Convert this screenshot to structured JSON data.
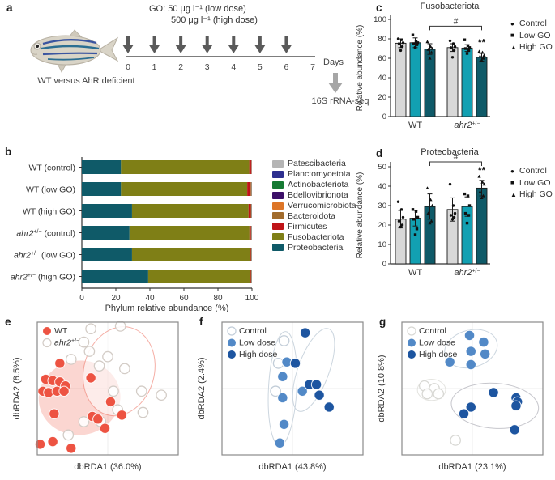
{
  "panel_a": {
    "label": "a",
    "dose_line1": "GO: 50 μg l⁻¹ (low dose)",
    "dose_line2": "500 μg l⁻¹ (high dose)",
    "fish_caption": "WT versus AhR deficient",
    "timeline_days": [
      "0",
      "1",
      "2",
      "3",
      "4",
      "5",
      "6",
      "7"
    ],
    "days_label": "Days",
    "seq_label": "16S rRNA-seq"
  },
  "panel_b": {
    "label": "b",
    "chart_data": {
      "type": "bar",
      "subtype": "horizontal_stacked",
      "xlabel": "Phylum relative abundance (%)",
      "xticks": [
        0,
        20,
        40,
        60,
        80,
        100
      ],
      "xlim": [
        0,
        100
      ],
      "categories": [
        {
          "pre": "WT (control)"
        },
        {
          "pre": "WT (low GO)"
        },
        {
          "pre": "WT (high GO)"
        },
        {
          "it": "ahr2",
          "sup": "+/−",
          "post": " (control)"
        },
        {
          "it": "ahr2",
          "sup": "+/−",
          "post": " (low GO)"
        },
        {
          "it": "ahr2",
          "sup": "+/−",
          "post": " (high GO)"
        }
      ],
      "series": [
        {
          "name": "Proteobacteria",
          "color": "#0f5a68",
          "values": [
            23,
            23,
            29.5,
            28,
            29.5,
            39
          ]
        },
        {
          "name": "Fusobacteriota",
          "color": "#7f7f16",
          "values": [
            75.4,
            74.2,
            68.5,
            70.5,
            69.1,
            59.7
          ]
        },
        {
          "name": "Firmicutes",
          "color": "#bf1418",
          "values": [
            1.1,
            2.0,
            1.3,
            0.9,
            0.7,
            0.6
          ]
        },
        {
          "name": "Bacteroidota",
          "color": "#a26c2d",
          "values": [
            0.2,
            0.3,
            0.3,
            0.2,
            0.3,
            0.3
          ]
        },
        {
          "name": "Verrucomicrobiota",
          "color": "#dd7527",
          "values": [
            0.1,
            0.2,
            0.1,
            0.1,
            0.1,
            0.1
          ]
        },
        {
          "name": "Bdellovibrionota",
          "color": "#3c0f68",
          "values": [
            0.1,
            0.1,
            0.1,
            0.1,
            0.1,
            0.1
          ]
        },
        {
          "name": "Actinobacteriota",
          "color": "#157a33",
          "values": [
            0.05,
            0.1,
            0.1,
            0.1,
            0.1,
            0.1
          ]
        },
        {
          "name": "Planctomycetota",
          "color": "#2d2f8f",
          "values": [
            0.03,
            0.05,
            0.05,
            0.05,
            0.05,
            0.05
          ]
        },
        {
          "name": "Patescibacteria",
          "color": "#b5b5b5",
          "values": [
            0.02,
            0.05,
            0.05,
            0.05,
            0.05,
            0.05
          ]
        }
      ],
      "legend_order": [
        "Patescibacteria",
        "Planctomycetota",
        "Actinobacteriota",
        "Bdellovibrionota",
        "Verrucomicrobiota",
        "Bacteroidota",
        "Firmicutes",
        "Fusobacteriota",
        "Proteobacteria"
      ]
    }
  },
  "panel_c": {
    "label": "c",
    "title": "Fusobacteriota",
    "legend": [
      {
        "marker": "●",
        "label": "Control"
      },
      {
        "marker": "■",
        "label": "Low GO"
      },
      {
        "marker": "▲",
        "label": "High GO"
      }
    ],
    "chart_data": {
      "type": "bar",
      "subtype": "grouped_vertical",
      "ylabel": "Relative abundance (%)",
      "ylim": [
        0,
        100
      ],
      "yticks": [
        0,
        20,
        40,
        60,
        80,
        100
      ],
      "groups": [
        {
          "pre": "WT"
        },
        {
          "it": "ahr2",
          "sup": "+/−"
        }
      ],
      "series": [
        "Control",
        "Low GO",
        "High GO"
      ],
      "bar_colors": [
        "#d8d8d8",
        "#12a0b2",
        "#0f5a68"
      ],
      "values": [
        [
          75.5,
          76,
          69.5
        ],
        [
          71,
          70.5,
          61
        ]
      ],
      "errors": [
        [
          4.5,
          5,
          5.5
        ],
        [
          4,
          3.5,
          4
        ]
      ],
      "points": [
        [
          [
            80,
            79,
            76,
            75,
            72,
            68
          ],
          [
            84,
            77,
            76,
            75,
            74,
            71
          ],
          [
            77,
            72,
            70,
            69,
            66,
            60
          ]
        ],
        [
          [
            78,
            75,
            72,
            71,
            68,
            61
          ],
          [
            79,
            73,
            71,
            70,
            68,
            65
          ],
          [
            67,
            66,
            63,
            62,
            60,
            58
          ]
        ]
      ],
      "significance": {
        "bracket_from": [
          0,
          2
        ],
        "bracket_to": [
          1,
          2
        ],
        "label": "#",
        "bracket_frac": 0.93,
        "stars": "**",
        "stars_value": 73
      }
    }
  },
  "panel_d": {
    "label": "d",
    "title": "Proteobacteria",
    "legend": [
      {
        "marker": "●",
        "label": "Control"
      },
      {
        "marker": "■",
        "label": "Low GO"
      },
      {
        "marker": "▲",
        "label": "High GO"
      }
    ],
    "chart_data": {
      "type": "bar",
      "subtype": "grouped_vertical",
      "ylabel": "Relative abundance (%)",
      "ylim": [
        0,
        50
      ],
      "yticks": [
        0,
        10,
        20,
        30,
        40,
        50
      ],
      "groups": [
        {
          "pre": "WT"
        },
        {
          "it": "ahr2",
          "sup": "+/−"
        }
      ],
      "series": [
        "Control",
        "Low GO",
        "High GO"
      ],
      "bar_colors": [
        "#d8d8d8",
        "#12a0b2",
        "#0f5a68"
      ],
      "values": [
        [
          23,
          23.5,
          29.5
        ],
        [
          28,
          29.5,
          39
        ]
      ],
      "errors": [
        [
          4.5,
          4,
          6.5
        ],
        [
          6,
          5,
          4
        ]
      ],
      "points": [
        [
          [
            32,
            28,
            24,
            22,
            20,
            19
          ],
          [
            28,
            27,
            24,
            23,
            18,
            15
          ],
          [
            39,
            33,
            30,
            26,
            22,
            21
          ]
        ],
        [
          [
            41,
            30,
            26,
            25,
            24,
            23
          ],
          [
            36,
            35,
            30,
            26,
            25,
            21
          ],
          [
            45,
            42,
            41,
            37,
            35,
            34
          ]
        ]
      ],
      "significance": {
        "bracket_from": [
          0,
          2
        ],
        "bracket_to": [
          1,
          2
        ],
        "label": "#",
        "bracket_frac": 1.05,
        "stars": "**",
        "stars_value": 46.5
      }
    }
  },
  "panel_e": {
    "label": "e",
    "chart_data": {
      "type": "scatter",
      "xlabel": "dbRDA1 (36.0%)",
      "ylabel": "dbRDA2 (8.5%)",
      "draw_order": [
        1,
        0
      ],
      "series": [
        {
          "label": {
            "pre": "WT"
          },
          "color": "#ed5342",
          "points": [
            [
              0.16,
              0.31
            ],
            [
              0.06,
              0.43
            ],
            [
              0.11,
              0.44
            ],
            [
              0.16,
              0.45
            ],
            [
              0.2,
              0.48
            ],
            [
              0.04,
              0.52
            ],
            [
              0.08,
              0.53
            ],
            [
              0.14,
              0.52
            ],
            [
              0.19,
              0.52
            ],
            [
              0.38,
              0.42
            ],
            [
              0.52,
              0.6
            ],
            [
              0.12,
              0.69
            ],
            [
              0.39,
              0.71
            ],
            [
              0.43,
              0.73
            ],
            [
              0.6,
              0.7
            ],
            [
              0.48,
              0.8
            ],
            [
              0.02,
              0.92
            ],
            [
              0.11,
              0.9
            ],
            [
              0.24,
              0.95
            ]
          ]
        },
        {
          "label": {
            "it": "ahr2",
            "sup": "+/−"
          },
          "open": true,
          "stroke": "#d3ccc6",
          "points": [
            [
              0.38,
              0.05
            ],
            [
              0.59,
              0.03
            ],
            [
              0.33,
              0.15
            ],
            [
              0.37,
              0.22
            ],
            [
              0.5,
              0.26
            ],
            [
              0.44,
              0.33
            ],
            [
              0.62,
              0.35
            ],
            [
              0.24,
              0.28
            ],
            [
              0.54,
              0.52
            ],
            [
              0.74,
              0.52
            ],
            [
              0.57,
              0.66
            ],
            [
              0.33,
              0.75
            ],
            [
              0.22,
              0.85
            ],
            [
              0.45,
              0.75
            ],
            [
              0.75,
              0.68
            ],
            [
              0.88,
              0.55
            ]
          ]
        }
      ],
      "ellipses": [
        {
          "cx": 0.3,
          "cy": 0.57,
          "rx": 0.29,
          "ry": 0.28,
          "rot": -8,
          "fill": "rgba(238,90,72,0.25)",
          "stroke": "none"
        },
        {
          "cx": 0.58,
          "cy": 0.37,
          "rx": 0.25,
          "ry": 0.34,
          "rot": 15,
          "fill": "rgba(255,255,255,0.55)",
          "stroke": "rgba(238,120,105,0.6)"
        }
      ]
    }
  },
  "panel_f": {
    "label": "f",
    "chart_data": {
      "type": "scatter",
      "xlabel": "dbRDA1 (43.8%)",
      "ylabel": "dbRDA2 (2.4%)",
      "draw_order": [
        0,
        1,
        2
      ],
      "series": [
        {
          "label": {
            "pre": "Control"
          },
          "open": true,
          "stroke": "#c2cdd8",
          "points": [
            [
              0.44,
              0.14
            ],
            [
              0.4,
              0.31
            ],
            [
              0.38,
              0.52
            ]
          ]
        },
        {
          "label": {
            "pre": "Low dose"
          },
          "color": "#5289c7",
          "points": [
            [
              0.46,
              0.3
            ],
            [
              0.43,
              0.41
            ],
            [
              0.43,
              0.57
            ],
            [
              0.44,
              0.77
            ],
            [
              0.41,
              0.91
            ],
            [
              0.57,
              0.52
            ]
          ]
        },
        {
          "label": {
            "pre": "High dose"
          },
          "color": "#1d55a0",
          "points": [
            [
              0.59,
              0.08
            ],
            [
              0.52,
              0.31
            ],
            [
              0.62,
              0.47
            ],
            [
              0.67,
              0.47
            ],
            [
              0.69,
              0.55
            ],
            [
              0.76,
              0.64
            ]
          ]
        }
      ],
      "ellipses": [
        {
          "cx": 0.43,
          "cy": 0.5,
          "rx": 0.1,
          "ry": 0.43,
          "rot": 3,
          "fill": "none",
          "stroke": "#ccd6df"
        },
        {
          "cx": 0.65,
          "cy": 0.36,
          "rx": 0.11,
          "ry": 0.33,
          "rot": 20,
          "fill": "none",
          "stroke": "#ccd6df"
        }
      ]
    }
  },
  "panel_g": {
    "label": "g",
    "chart_data": {
      "type": "scatter",
      "xlabel": "dbRDA1 (23.1%)",
      "ylabel": "dbRDA2 (10.8%)",
      "draw_order": [
        0,
        1,
        2
      ],
      "series": [
        {
          "label": {
            "pre": "Control"
          },
          "open": true,
          "stroke": "#d8d8d4",
          "points": [
            [
              0.16,
              0.48
            ],
            [
              0.23,
              0.5
            ],
            [
              0.18,
              0.54
            ],
            [
              0.26,
              0.54
            ],
            [
              0.38,
              0.89
            ]
          ]
        },
        {
          "label": {
            "pre": "Low dose"
          },
          "color": "#5289c7",
          "points": [
            [
              0.48,
              0.1
            ],
            [
              0.58,
              0.15
            ],
            [
              0.49,
              0.22
            ],
            [
              0.59,
              0.24
            ],
            [
              0.34,
              0.3
            ],
            [
              0.49,
              0.32
            ]
          ]
        },
        {
          "label": {
            "pre": "High dose"
          },
          "color": "#1d55a0",
          "points": [
            [
              0.65,
              0.53
            ],
            [
              0.81,
              0.57
            ],
            [
              0.82,
              0.6
            ],
            [
              0.81,
              0.63
            ],
            [
              0.49,
              0.64
            ],
            [
              0.44,
              0.69
            ],
            [
              0.8,
              0.81
            ]
          ]
        }
      ],
      "ellipses": [
        {
          "cx": 0.49,
          "cy": 0.2,
          "rx": 0.19,
          "ry": 0.14,
          "rot": -15,
          "fill": "none",
          "stroke": "#ccd6df"
        },
        {
          "cx": 0.21,
          "cy": 0.51,
          "rx": 0.1,
          "ry": 0.08,
          "rot": 0,
          "fill": "none",
          "stroke": "#e4e4e0"
        },
        {
          "cx": 0.66,
          "cy": 0.63,
          "rx": 0.31,
          "ry": 0.17,
          "rot": 4,
          "fill": "none",
          "stroke": "#c6c6cc"
        }
      ]
    }
  }
}
